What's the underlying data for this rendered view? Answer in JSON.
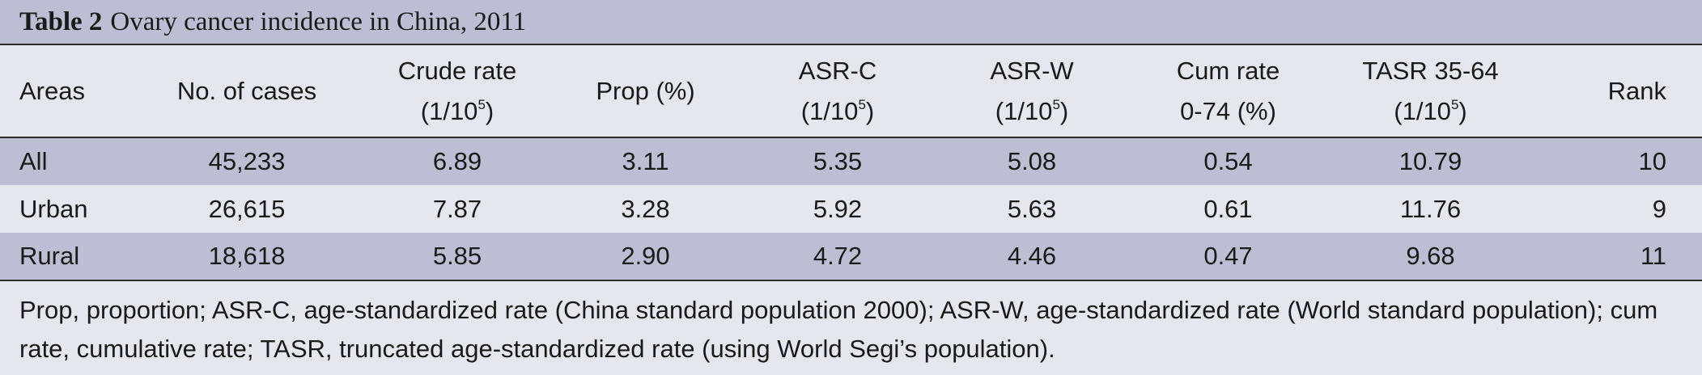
{
  "title": {
    "label": "Table 2",
    "text": "Ovary cancer incidence in China, 2011"
  },
  "headers": {
    "areas": "Areas",
    "cases": "No. of cases",
    "crude_line1": "Crude rate",
    "crude_line2_pre": "(1/10",
    "crude_sup": "5",
    "crude_line2_post": ")",
    "prop": "Prop (%)",
    "asrc_line1": "ASR-C",
    "asrc_line2_pre": "(1/10",
    "asrc_sup": "5",
    "asrc_line2_post": ")",
    "asrw_line1": "ASR-W",
    "asrw_line2_pre": "(1/10",
    "asrw_sup": "5",
    "asrw_line2_post": ")",
    "cum_line1": "Cum rate",
    "cum_line2": "0-74 (%)",
    "tasr_line1": "TASR 35-64",
    "tasr_line2_pre": "(1/10",
    "tasr_sup": "5",
    "tasr_line2_post": ")",
    "rank": "Rank"
  },
  "rows": [
    {
      "area": "All",
      "cases": "45,233",
      "crude": "6.89",
      "prop": "3.11",
      "asrc": "5.35",
      "asrw": "5.08",
      "cum": "0.54",
      "tasr": "10.79",
      "rank": "10"
    },
    {
      "area": "Urban",
      "cases": "26,615",
      "crude": "7.87",
      "prop": "3.28",
      "asrc": "5.92",
      "asrw": "5.63",
      "cum": "0.61",
      "tasr": "11.76",
      "rank": "9"
    },
    {
      "area": "Rural",
      "cases": "18,618",
      "crude": "5.85",
      "prop": "2.90",
      "asrc": "4.72",
      "asrw": "4.46",
      "cum": "0.47",
      "tasr": "9.68",
      "rank": "11"
    }
  ],
  "footnote": "Prop, proportion; ASR-C, age-standardized rate (China standard population 2000); ASR-W, age-standardized rate (World standard population); cum rate, cumulative rate; TASR, truncated age-standardized rate (using World Segi’s population)."
}
